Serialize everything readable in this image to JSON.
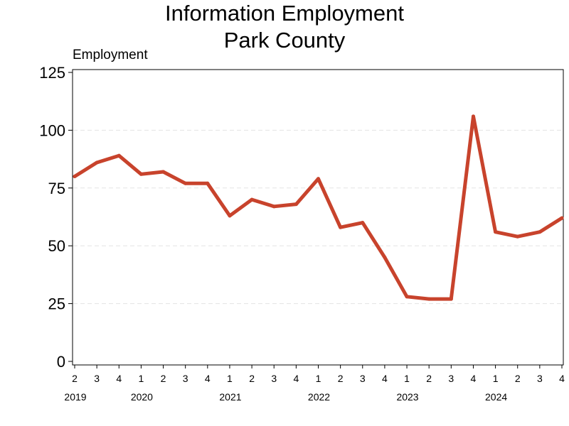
{
  "title_line1": "Information Employment",
  "title_line2": "Park County",
  "chart_data": {
    "type": "line",
    "title": "Information Employment Park County",
    "ylabel": "Employment",
    "xlabel": "",
    "ylim": [
      0,
      125
    ],
    "yticks": [
      0,
      25,
      50,
      75,
      100,
      125
    ],
    "grid": "horizontal-dashed",
    "legend": "none",
    "line_color": "#c8432c",
    "categories": [
      "2019 Q2",
      "2019 Q3",
      "2019 Q4",
      "2020 Q1",
      "2020 Q2",
      "2020 Q3",
      "2020 Q4",
      "2021 Q1",
      "2021 Q2",
      "2021 Q3",
      "2021 Q4",
      "2022 Q1",
      "2022 Q2",
      "2022 Q3",
      "2022 Q4",
      "2023 Q1",
      "2023 Q2",
      "2023 Q3",
      "2023 Q4",
      "2024 Q1",
      "2024 Q2",
      "2024 Q3",
      "2024 Q4"
    ],
    "quarter_labels": [
      "2",
      "3",
      "4",
      "1",
      "2",
      "3",
      "4",
      "1",
      "2",
      "3",
      "4",
      "1",
      "2",
      "3",
      "4",
      "1",
      "2",
      "3",
      "4",
      "1",
      "2",
      "3",
      "4"
    ],
    "year_labels": [
      {
        "label": "2019",
        "index": 0
      },
      {
        "label": "2020",
        "index": 3
      },
      {
        "label": "2021",
        "index": 7
      },
      {
        "label": "2022",
        "index": 11
      },
      {
        "label": "2023",
        "index": 15
      },
      {
        "label": "2024",
        "index": 19
      }
    ],
    "series": [
      {
        "values": [
          80,
          86,
          89,
          81,
          82,
          77,
          77,
          63,
          70,
          67,
          68,
          79,
          58,
          60,
          45,
          28,
          27,
          27,
          106,
          56,
          54,
          56,
          62
        ]
      }
    ]
  }
}
